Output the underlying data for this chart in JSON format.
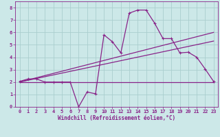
{
  "background_color": "#cce8e8",
  "grid_color": "#aacece",
  "line_color": "#882288",
  "xlabel": "Windchill (Refroidissement éolien,°C)",
  "xlim": [
    -0.5,
    23.5
  ],
  "ylim": [
    0,
    8.5
  ],
  "xticks": [
    0,
    1,
    2,
    3,
    4,
    5,
    6,
    7,
    8,
    9,
    10,
    11,
    12,
    13,
    14,
    15,
    16,
    17,
    18,
    19,
    20,
    21,
    22,
    23
  ],
  "yticks": [
    0,
    1,
    2,
    3,
    4,
    5,
    6,
    7,
    8
  ],
  "series1_x": [
    0,
    1,
    2,
    3,
    4,
    5,
    6,
    7,
    8,
    9,
    10,
    11,
    12,
    13,
    14,
    15,
    16,
    17,
    18,
    19,
    20,
    21,
    22,
    23
  ],
  "series1_y": [
    2.05,
    2.25,
    2.25,
    2.0,
    2.0,
    2.0,
    2.0,
    0.0,
    1.2,
    1.05,
    5.8,
    5.25,
    4.35,
    7.55,
    7.8,
    7.8,
    6.75,
    5.5,
    5.5,
    4.35,
    4.4,
    4.0,
    3.05,
    2.05
  ],
  "series2_x": [
    0,
    23
  ],
  "series2_y": [
    2.0,
    2.0
  ],
  "series3_x": [
    0,
    23
  ],
  "series3_y": [
    2.0,
    6.0
  ],
  "series4_x": [
    0,
    23
  ],
  "series4_y": [
    2.0,
    5.3
  ],
  "marker_size": 3.5,
  "linewidth": 0.9
}
